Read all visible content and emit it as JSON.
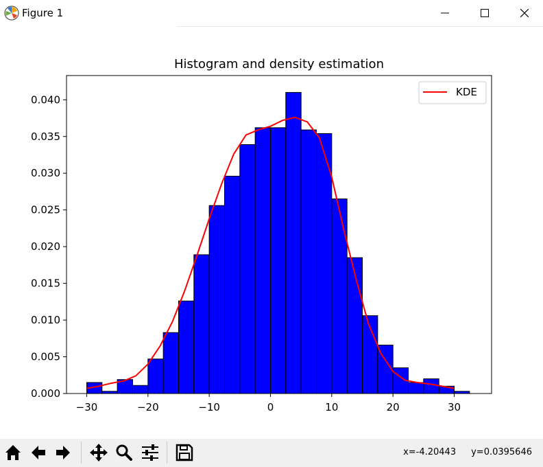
{
  "window": {
    "title": "Figure 1"
  },
  "status": {
    "x_readout": "x=-4.20443",
    "y_readout": "y=0.0395646"
  },
  "chart_data": {
    "type": "bar",
    "title": "Histogram and density estimation",
    "xlabel": "",
    "ylabel": "",
    "xlim": [
      -33.3,
      36.1
    ],
    "ylim": [
      0,
      0.0433
    ],
    "xticks": [
      -30,
      -20,
      -10,
      0,
      10,
      20,
      30
    ],
    "xtick_labels": [
      "−30",
      "−20",
      "−10",
      "0",
      "10",
      "20",
      "30"
    ],
    "yticks": [
      0,
      0.005,
      0.01,
      0.015,
      0.02,
      0.025,
      0.03,
      0.035,
      0.04
    ],
    "ytick_labels": [
      "0.000",
      "0.005",
      "0.010",
      "0.015",
      "0.020",
      "0.025",
      "0.030",
      "0.035",
      "0.040"
    ],
    "bin_edges": [
      -30.0,
      -27.5,
      -25.0,
      -22.5,
      -20.0,
      -17.5,
      -15.0,
      -12.5,
      -10.0,
      -7.5,
      -5.0,
      -2.5,
      0.0,
      2.5,
      5.0,
      7.5,
      10.0,
      12.5,
      15.0,
      17.5,
      20.0,
      22.5,
      25.0,
      27.5,
      30.0,
      32.5
    ],
    "values": [
      0.0015,
      0.0003,
      0.0019,
      0.0011,
      0.0047,
      0.0083,
      0.0126,
      0.0189,
      0.0256,
      0.0296,
      0.0339,
      0.0362,
      0.0362,
      0.041,
      0.0359,
      0.0354,
      0.0265,
      0.0185,
      0.0106,
      0.0066,
      0.0035,
      0.0015,
      0.002,
      0.001,
      0.0003
    ],
    "bar_color": "#0000ff",
    "kde": {
      "name": "KDE",
      "color": "#ff0000",
      "x": [
        -30,
        -28,
        -26,
        -24,
        -22,
        -20,
        -18,
        -16,
        -14,
        -12,
        -10,
        -8,
        -6,
        -4,
        -2,
        0,
        2,
        4,
        6,
        8,
        10,
        12,
        14,
        16,
        18,
        20,
        22,
        24,
        26,
        28,
        30
      ],
      "y": [
        0.0007,
        0.001,
        0.0014,
        0.0017,
        0.0024,
        0.004,
        0.0065,
        0.0098,
        0.014,
        0.0188,
        0.0238,
        0.0285,
        0.0326,
        0.0352,
        0.0359,
        0.0364,
        0.0372,
        0.0376,
        0.037,
        0.0348,
        0.0295,
        0.0222,
        0.0155,
        0.0095,
        0.0055,
        0.003,
        0.0018,
        0.0015,
        0.0013,
        0.001,
        0.0007
      ]
    },
    "legend": {
      "position": "top-right",
      "entries": [
        "KDE"
      ]
    },
    "grid": false
  }
}
